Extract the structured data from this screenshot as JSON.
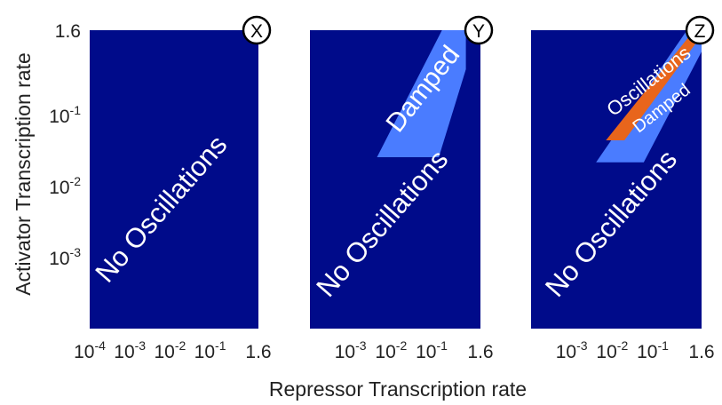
{
  "colors": {
    "no_oscillations": "#000b8a",
    "damped": "#4a7cff",
    "oscillations": "#e8651c",
    "background": "#ffffff",
    "text_on_region": "#ffffff"
  },
  "chart_data": {
    "type": "heatmap",
    "xlabel": "Repressor Transcription rate",
    "ylabel": "Activator Transcription rate",
    "x_scale": "log",
    "y_scale": "log",
    "xlim": [
      0.0001,
      1.6
    ],
    "ylim": [
      0.0001,
      1.6
    ],
    "y_ticks": [
      {
        "value": 1.6,
        "base": "1.6",
        "exp": ""
      },
      {
        "value": 0.1,
        "base": "10",
        "exp": "-1"
      },
      {
        "value": 0.01,
        "base": "10",
        "exp": "-2"
      },
      {
        "value": 0.001,
        "base": "10",
        "exp": "-3"
      }
    ],
    "panels": [
      {
        "badge": "X",
        "x_ticks": [
          {
            "value": 0.0001,
            "base": "10",
            "exp": "-4"
          },
          {
            "value": 0.001,
            "base": "10",
            "exp": "-3"
          },
          {
            "value": 0.01,
            "base": "10",
            "exp": "-2"
          },
          {
            "value": 0.1,
            "base": "10",
            "exp": "-1"
          },
          {
            "value": 1.6,
            "base": "1.6",
            "exp": ""
          }
        ],
        "regions": [],
        "labels": [
          {
            "text": "No Oscillations",
            "region": "no_oscillations",
            "x": 0.009,
            "y": 0.004,
            "angle": -49,
            "size": 31
          }
        ]
      },
      {
        "badge": "Y",
        "x_ticks": [
          {
            "value": 0.001,
            "base": "10",
            "exp": "-3"
          },
          {
            "value": 0.01,
            "base": "10",
            "exp": "-2"
          },
          {
            "value": 0.1,
            "base": "10",
            "exp": "-1"
          },
          {
            "value": 1.6,
            "base": "1.6",
            "exp": ""
          }
        ],
        "regions": [
          {
            "name": "damped",
            "polygon": [
              [
                0.0045,
                0.026
              ],
              [
                0.15,
                0.026
              ],
              [
                0.7,
                0.45
              ],
              [
                0.7,
                1.6
              ],
              [
                0.18,
                1.6
              ]
            ]
          }
        ],
        "labels": [
          {
            "text": "Damped",
            "region": "damped",
            "x": 0.09,
            "y": 0.2,
            "angle": -52,
            "size": 30
          },
          {
            "text": "No Oscillations",
            "region": "no_oscillations",
            "x": 0.009,
            "y": 0.0025,
            "angle": -49,
            "size": 31
          }
        ]
      },
      {
        "badge": "Z",
        "x_ticks": [
          {
            "value": 0.001,
            "base": "10",
            "exp": "-3"
          },
          {
            "value": 0.01,
            "base": "10",
            "exp": "-2"
          },
          {
            "value": 0.1,
            "base": "10",
            "exp": "-1"
          },
          {
            "value": 1.6,
            "base": "1.6",
            "exp": ""
          }
        ],
        "regions": [
          {
            "name": "damped",
            "polygon": [
              [
                0.004,
                0.022
              ],
              [
                0.06,
                0.022
              ],
              [
                1.6,
                0.8
              ],
              [
                1.6,
                1.6
              ],
              [
                0.7,
                1.6
              ]
            ]
          },
          {
            "name": "oscillations",
            "polygon": [
              [
                0.007,
                0.045
              ],
              [
                0.02,
                0.045
              ],
              [
                1.6,
                1.35
              ],
              [
                1.6,
                1.6
              ],
              [
                1.05,
                1.6
              ]
            ]
          }
        ],
        "labels": [
          {
            "text": "Oscillations",
            "region": "oscillations",
            "x": 0.1,
            "y": 0.26,
            "angle": -38,
            "size": 22
          },
          {
            "text": "Damped",
            "region": "damped",
            "x": 0.2,
            "y": 0.11,
            "angle": -38,
            "size": 20
          },
          {
            "text": "No Oscillations",
            "region": "no_oscillations",
            "x": 0.014,
            "y": 0.0025,
            "angle": -49,
            "size": 31
          }
        ]
      }
    ]
  }
}
